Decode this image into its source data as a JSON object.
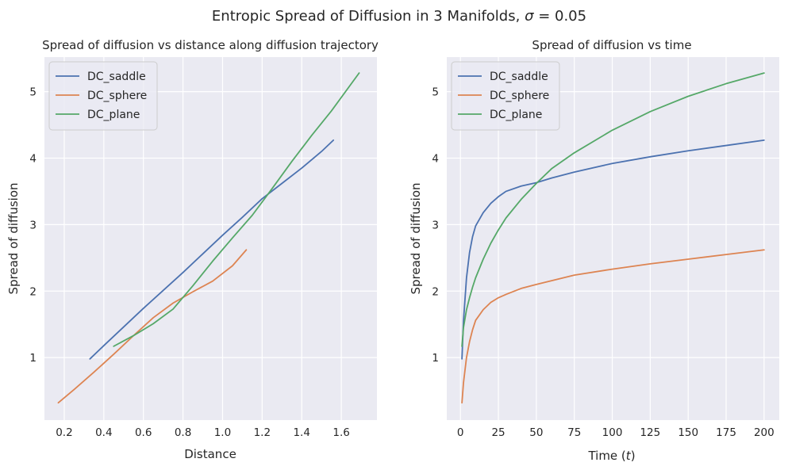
{
  "figure": {
    "suptitle_prefix": "Entropic Spread of Diffusion in 3 Manifolds, ",
    "suptitle_sigma": "σ",
    "suptitle_suffix": " = 0.05"
  },
  "colors": {
    "DC_saddle": "#4c72b0",
    "DC_sphere": "#dd8452",
    "DC_plane": "#55a868",
    "axes_bg": "#eaeaf2",
    "grid": "#ffffff"
  },
  "chart_data": [
    {
      "type": "line",
      "title": "Spread of diffusion vs distance along diffusion trajectory",
      "xlabel": "Distance",
      "ylabel": "Spread of diffusion",
      "xlim": [
        0.1,
        1.78
      ],
      "ylim": [
        0.06,
        5.52
      ],
      "xticks": [
        0.2,
        0.4,
        0.6,
        0.8,
        1.0,
        1.2,
        1.4,
        1.6
      ],
      "xtick_labels": [
        "0.2",
        "0.4",
        "0.6",
        "0.8",
        "1.0",
        "1.2",
        "1.4",
        "1.6"
      ],
      "yticks": [
        1,
        2,
        3,
        4,
        5
      ],
      "ytick_labels": [
        "1",
        "2",
        "3",
        "4",
        "5"
      ],
      "grid": true,
      "legend": "top-left",
      "series": [
        {
          "name": "DC_saddle",
          "points": [
            [
              0.33,
              0.98
            ],
            [
              0.4,
              1.18
            ],
            [
              0.5,
              1.46
            ],
            [
              0.6,
              1.74
            ],
            [
              0.7,
              2.01
            ],
            [
              0.8,
              2.28
            ],
            [
              0.9,
              2.56
            ],
            [
              1.0,
              2.84
            ],
            [
              1.1,
              3.11
            ],
            [
              1.2,
              3.39
            ],
            [
              1.3,
              3.62
            ],
            [
              1.4,
              3.85
            ],
            [
              1.5,
              4.1
            ],
            [
              1.56,
              4.27
            ]
          ]
        },
        {
          "name": "DC_sphere",
          "points": [
            [
              0.17,
              0.32
            ],
            [
              0.25,
              0.52
            ],
            [
              0.35,
              0.78
            ],
            [
              0.45,
              1.05
            ],
            [
              0.55,
              1.33
            ],
            [
              0.65,
              1.6
            ],
            [
              0.75,
              1.82
            ],
            [
              0.85,
              1.99
            ],
            [
              0.95,
              2.15
            ],
            [
              1.05,
              2.38
            ],
            [
              1.12,
              2.62
            ]
          ]
        },
        {
          "name": "DC_plane",
          "points": [
            [
              0.45,
              1.17
            ],
            [
              0.55,
              1.33
            ],
            [
              0.65,
              1.51
            ],
            [
              0.75,
              1.73
            ],
            [
              0.85,
              2.08
            ],
            [
              0.95,
              2.45
            ],
            [
              1.05,
              2.8
            ],
            [
              1.15,
              3.14
            ],
            [
              1.25,
              3.54
            ],
            [
              1.35,
              3.95
            ],
            [
              1.45,
              4.34
            ],
            [
              1.55,
              4.71
            ],
            [
              1.69,
              5.28
            ]
          ]
        }
      ]
    },
    {
      "type": "line",
      "title": "Spread of diffusion vs time",
      "xlabel_prefix": "Time (",
      "xlabel_var": "t",
      "xlabel_suffix": ")",
      "ylabel": "Spread of diffusion",
      "xlim": [
        -9,
        210
      ],
      "ylim": [
        0.06,
        5.52
      ],
      "xticks": [
        0,
        25,
        50,
        75,
        100,
        125,
        150,
        175,
        200
      ],
      "xtick_labels": [
        "0",
        "25",
        "50",
        "75",
        "100",
        "125",
        "150",
        "175",
        "200"
      ],
      "yticks": [
        1,
        2,
        3,
        4,
        5
      ],
      "ytick_labels": [
        "1",
        "2",
        "3",
        "4",
        "5"
      ],
      "grid": true,
      "legend": "top-left",
      "series": [
        {
          "name": "DC_saddle",
          "points": [
            [
              1,
              0.98
            ],
            [
              2,
              1.55
            ],
            [
              4,
              2.2
            ],
            [
              6,
              2.58
            ],
            [
              8,
              2.82
            ],
            [
              10,
              2.98
            ],
            [
              15,
              3.18
            ],
            [
              20,
              3.32
            ],
            [
              25,
              3.42
            ],
            [
              30,
              3.5
            ],
            [
              40,
              3.58
            ],
            [
              50,
              3.63
            ],
            [
              60,
              3.7
            ],
            [
              75,
              3.79
            ],
            [
              100,
              3.92
            ],
            [
              125,
              4.02
            ],
            [
              150,
              4.11
            ],
            [
              175,
              4.19
            ],
            [
              200,
              4.27
            ]
          ]
        },
        {
          "name": "DC_sphere",
          "points": [
            [
              1,
              0.32
            ],
            [
              2,
              0.62
            ],
            [
              4,
              1.0
            ],
            [
              6,
              1.24
            ],
            [
              8,
              1.42
            ],
            [
              10,
              1.56
            ],
            [
              15,
              1.72
            ],
            [
              20,
              1.83
            ],
            [
              25,
              1.9
            ],
            [
              30,
              1.95
            ],
            [
              40,
              2.04
            ],
            [
              50,
              2.1
            ],
            [
              75,
              2.24
            ],
            [
              100,
              2.33
            ],
            [
              125,
              2.41
            ],
            [
              150,
              2.48
            ],
            [
              175,
              2.55
            ],
            [
              200,
              2.62
            ]
          ]
        },
        {
          "name": "DC_plane",
          "points": [
            [
              1,
              1.17
            ],
            [
              2,
              1.45
            ],
            [
              4,
              1.72
            ],
            [
              6,
              1.9
            ],
            [
              8,
              2.06
            ],
            [
              10,
              2.2
            ],
            [
              15,
              2.48
            ],
            [
              20,
              2.72
            ],
            [
              25,
              2.92
            ],
            [
              30,
              3.1
            ],
            [
              40,
              3.38
            ],
            [
              50,
              3.62
            ],
            [
              60,
              3.84
            ],
            [
              75,
              4.08
            ],
            [
              100,
              4.42
            ],
            [
              125,
              4.7
            ],
            [
              150,
              4.93
            ],
            [
              175,
              5.12
            ],
            [
              200,
              5.28
            ]
          ]
        }
      ]
    }
  ]
}
